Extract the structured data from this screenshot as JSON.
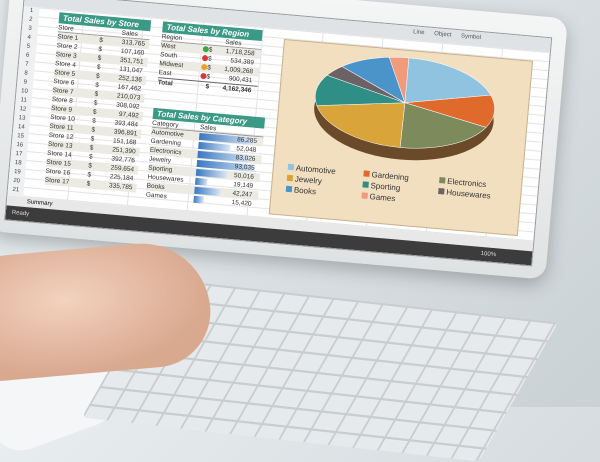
{
  "ribbon": {
    "items": [
      "Line",
      "Object",
      "Symbol"
    ]
  },
  "store_table": {
    "title": "Total Sales by Store",
    "headers": [
      "Store",
      "Sales"
    ],
    "rows": [
      [
        "Store 1",
        "313,765"
      ],
      [
        "Store 2",
        "107,160"
      ],
      [
        "Store 3",
        "351,751"
      ],
      [
        "Store 4",
        "131,047"
      ],
      [
        "Store 5",
        "252,136"
      ],
      [
        "Store 6",
        "167,462"
      ],
      [
        "Store 7",
        "210,073"
      ],
      [
        "Store 8",
        "308,092"
      ],
      [
        "Store 9",
        "97,492"
      ],
      [
        "Store 10",
        "393,484"
      ],
      [
        "Store 11",
        "396,891"
      ],
      [
        "Store 12",
        "151,168"
      ],
      [
        "Store 13",
        "251,390"
      ],
      [
        "Store 14",
        "392,776"
      ],
      [
        "Store 15",
        "259,654"
      ],
      [
        "Store 16",
        "225,184"
      ],
      [
        "Store 17",
        "335,785"
      ]
    ]
  },
  "region_table": {
    "title": "Total Sales by Region",
    "headers": [
      "Region",
      "Sales"
    ],
    "rows": [
      {
        "name": "West",
        "value": "1,718,258",
        "status": "green"
      },
      {
        "name": "South",
        "value": "534,389",
        "status": "red"
      },
      {
        "name": "Midwest",
        "value": "1,009,268",
        "status": "yellow"
      },
      {
        "name": "East",
        "value": "900,431",
        "status": "red"
      }
    ],
    "total_label": "Total",
    "total": "4,162,346"
  },
  "category_table": {
    "title": "Total Sales by Category",
    "headers": [
      "Category",
      "Sales"
    ],
    "rows": [
      [
        "Automotive",
        "86,285",
        86285
      ],
      [
        "Gardening",
        "52,048",
        52048
      ],
      [
        "Electronics",
        "83,026",
        83026
      ],
      [
        "Jewelry",
        "93,035",
        93035
      ],
      [
        "Sporting",
        "50,016",
        50016
      ],
      [
        "Housewares",
        "19,149",
        19149
      ],
      [
        "Books",
        "42,247",
        42247
      ],
      [
        "Games",
        "15,420",
        15420
      ]
    ]
  },
  "currency": "$",
  "pie": {
    "legend": [
      {
        "label": "Automotive",
        "color": "#8fc3e0"
      },
      {
        "label": "Gardening",
        "color": "#e06a2c"
      },
      {
        "label": "Electronics",
        "color": "#7d8a5c"
      },
      {
        "label": "Jewelry",
        "color": "#d9a53a"
      },
      {
        "label": "Sporting",
        "color": "#2f8f86"
      },
      {
        "label": "Housewares",
        "color": "#6c6266"
      },
      {
        "label": "Books",
        "color": "#4b94c9"
      },
      {
        "label": "Games",
        "color": "#f29a7c"
      }
    ]
  },
  "sheet_tabs": [
    "Ready",
    "Summary"
  ],
  "status": {
    "zoom": "100%"
  }
}
